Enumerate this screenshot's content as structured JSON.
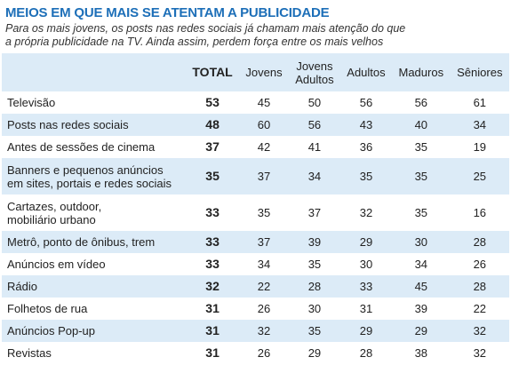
{
  "title": "MEIOS EM QUE MAIS SE ATENTAM A PUBLICIDADE",
  "subtitle": [
    "Para os mais jovens, os posts nas redes sociais já chamam mais atenção do que",
    "a própria publicidade na TV. Ainda assim, perdem força entre os mais velhos"
  ],
  "table": {
    "header": [
      "TOTAL",
      "Jovens",
      [
        "Jovens",
        "Adultos"
      ],
      "Adultos",
      "Maduros",
      "Sêniores"
    ],
    "rows": [
      {
        "label": [
          "Televisão"
        ],
        "total": 53,
        "values": [
          45,
          50,
          56,
          56,
          61
        ]
      },
      {
        "label": [
          "Posts nas redes sociais"
        ],
        "total": 48,
        "values": [
          60,
          56,
          43,
          40,
          34
        ]
      },
      {
        "label": [
          "Antes de sessões de cinema"
        ],
        "total": 37,
        "values": [
          42,
          41,
          36,
          35,
          19
        ]
      },
      {
        "label": [
          "Banners e pequenos anúncios",
          "em sites, portais e redes sociais"
        ],
        "total": 35,
        "values": [
          37,
          34,
          35,
          35,
          25
        ]
      },
      {
        "label": [
          "Cartazes, outdoor,",
          "mobiliário urbano"
        ],
        "total": 33,
        "values": [
          35,
          37,
          32,
          35,
          16
        ]
      },
      {
        "label": [
          "Metrô, ponto de ônibus, trem"
        ],
        "total": 33,
        "values": [
          37,
          39,
          29,
          30,
          28
        ]
      },
      {
        "label": [
          "Anúncios em vídeo"
        ],
        "total": 33,
        "values": [
          34,
          35,
          30,
          34,
          26
        ]
      },
      {
        "label": [
          "Rádio"
        ],
        "total": 32,
        "values": [
          22,
          28,
          33,
          45,
          28
        ]
      },
      {
        "label": [
          "Folhetos de rua"
        ],
        "total": 31,
        "values": [
          26,
          30,
          31,
          39,
          22
        ]
      },
      {
        "label": [
          "Anúncios Pop-up"
        ],
        "total": 31,
        "values": [
          32,
          35,
          29,
          29,
          32
        ]
      },
      {
        "label": [
          "Revistas"
        ],
        "total": 31,
        "values": [
          26,
          29,
          28,
          38,
          32
        ]
      }
    ]
  }
}
